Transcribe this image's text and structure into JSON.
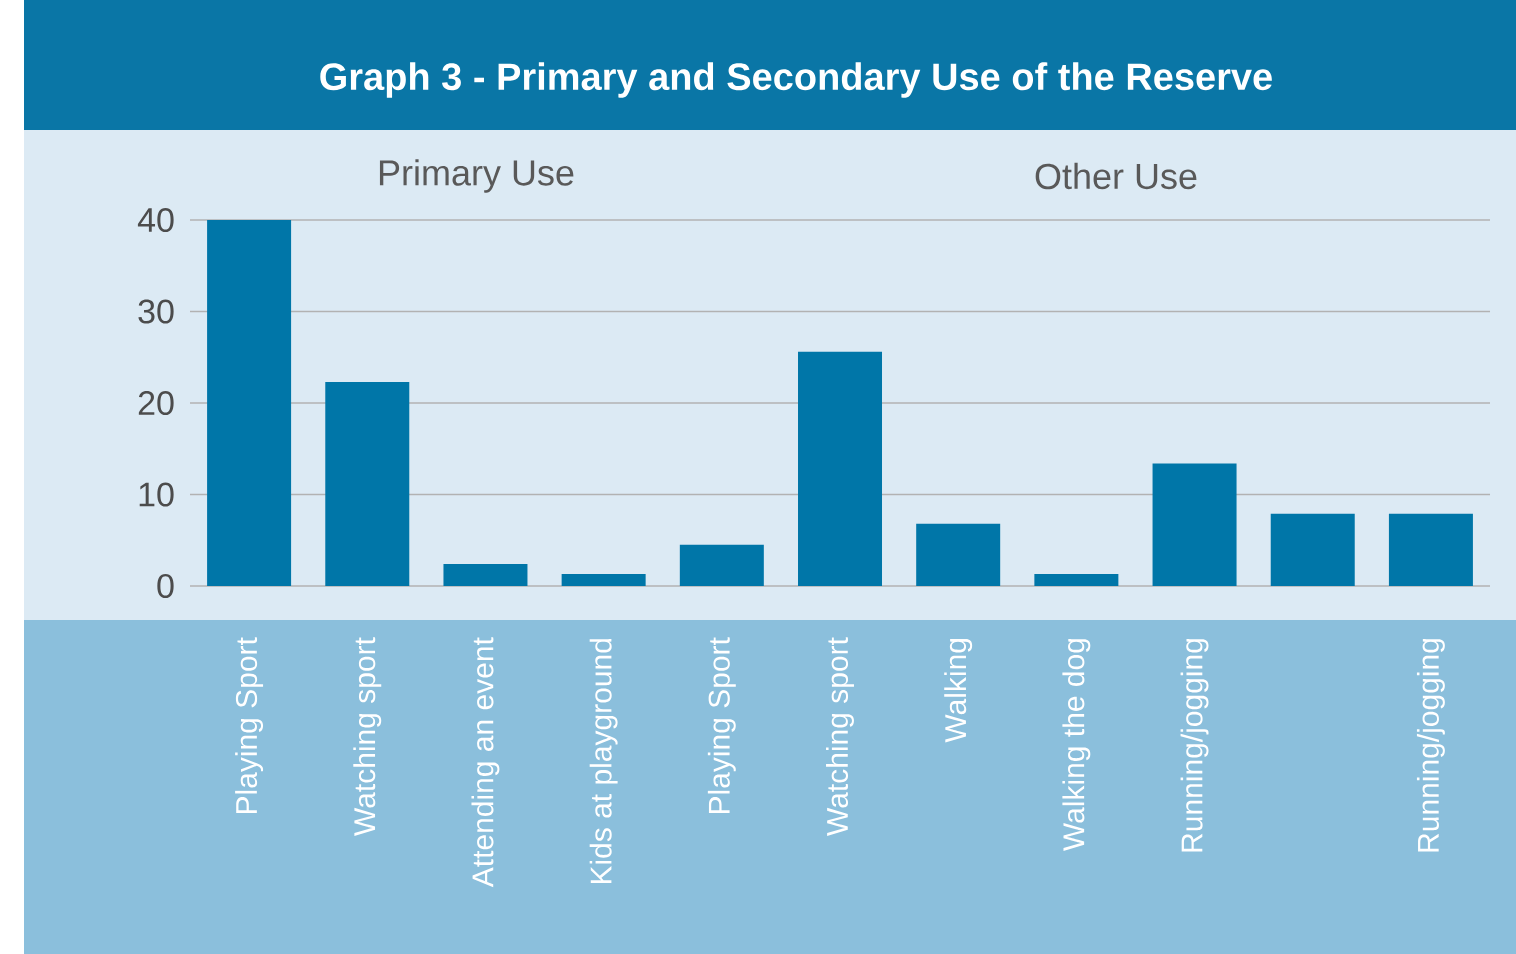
{
  "chart_data": {
    "type": "bar",
    "title": "Graph 3 - Primary and Secondary Use of the Reserve",
    "categories": [
      "Playing Sport",
      "Watching sport",
      "Attending an event",
      "Kids at playground",
      "Playing Sport",
      "Watching sport",
      "Walking",
      "Walking the dog",
      "Running/jogging",
      null,
      "Running/jogging"
    ],
    "values": [
      40,
      22.3,
      2.4,
      1.3,
      4.5,
      25.6,
      6.8,
      1.3,
      13.4,
      7.9,
      7.9
    ],
    "color": "#0076a8",
    "ylim": [
      0,
      40
    ],
    "yticks": [
      0,
      10,
      20,
      30,
      40
    ],
    "grid": "y",
    "annotations": [
      "Primary Use",
      "Other Use"
    ]
  }
}
